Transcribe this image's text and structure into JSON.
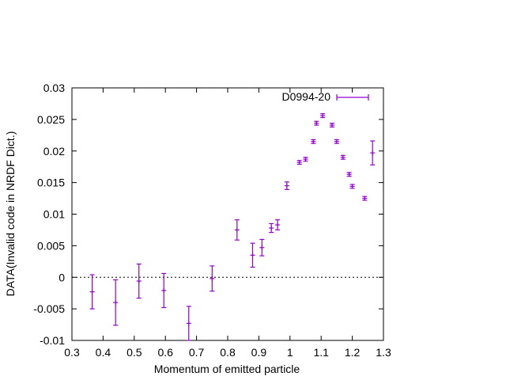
{
  "chart_data": {
    "type": "scatter",
    "title": "",
    "xlabel": "Momentum of emitted particle",
    "ylabel": "DATA(Invalid code in NRDF Dict.)",
    "xlim": [
      0.3,
      1.3
    ],
    "ylim": [
      -0.01,
      0.03
    ],
    "x_ticks": [
      "0.3",
      "0.4",
      "0.5",
      "0.6",
      "0.7",
      "0.8",
      "0.9",
      "1",
      "1.1",
      "1.2",
      "1.3"
    ],
    "y_ticks": [
      "-0.01",
      "-0.005",
      "0",
      "0.005",
      "0.01",
      "0.015",
      "0.02",
      "0.025",
      "0.03"
    ],
    "zero_line": true,
    "legend_position": "top-right",
    "series": [
      {
        "name": "D0994-20",
        "color": "#9400d3",
        "points": [
          {
            "x": 0.365,
            "y": -0.0023,
            "yerr": 0.0027
          },
          {
            "x": 0.44,
            "y": -0.004,
            "yerr": 0.0036
          },
          {
            "x": 0.515,
            "y": -0.0006,
            "yerr": 0.0027
          },
          {
            "x": 0.595,
            "y": -0.0021,
            "yerr": 0.0027
          },
          {
            "x": 0.675,
            "y": -0.0073,
            "yerr": 0.0027
          },
          {
            "x": 0.75,
            "y": -0.0002,
            "yerr": 0.002
          },
          {
            "x": 0.83,
            "y": 0.0075,
            "yerr": 0.0016
          },
          {
            "x": 0.88,
            "y": 0.0035,
            "yerr": 0.0019
          },
          {
            "x": 0.91,
            "y": 0.0047,
            "yerr": 0.0013
          },
          {
            "x": 0.94,
            "y": 0.0078,
            "yerr": 0.0007
          },
          {
            "x": 0.96,
            "y": 0.0083,
            "yerr": 0.0008
          },
          {
            "x": 0.99,
            "y": 0.0145,
            "yerr": 0.0006
          },
          {
            "x": 1.03,
            "y": 0.0182,
            "yerr": 0.0003
          },
          {
            "x": 1.05,
            "y": 0.0187,
            "yerr": 0.0003
          },
          {
            "x": 1.075,
            "y": 0.0215,
            "yerr": 0.0003
          },
          {
            "x": 1.085,
            "y": 0.0244,
            "yerr": 0.0003
          },
          {
            "x": 1.105,
            "y": 0.0256,
            "yerr": 0.0003
          },
          {
            "x": 1.135,
            "y": 0.0241,
            "yerr": 0.0003
          },
          {
            "x": 1.15,
            "y": 0.0215,
            "yerr": 0.0003
          },
          {
            "x": 1.17,
            "y": 0.019,
            "yerr": 0.0003
          },
          {
            "x": 1.19,
            "y": 0.0163,
            "yerr": 0.0003
          },
          {
            "x": 1.2,
            "y": 0.0144,
            "yerr": 0.0003
          },
          {
            "x": 1.24,
            "y": 0.0125,
            "yerr": 0.0003
          },
          {
            "x": 1.265,
            "y": 0.0197,
            "yerr": 0.0019
          }
        ]
      }
    ]
  }
}
